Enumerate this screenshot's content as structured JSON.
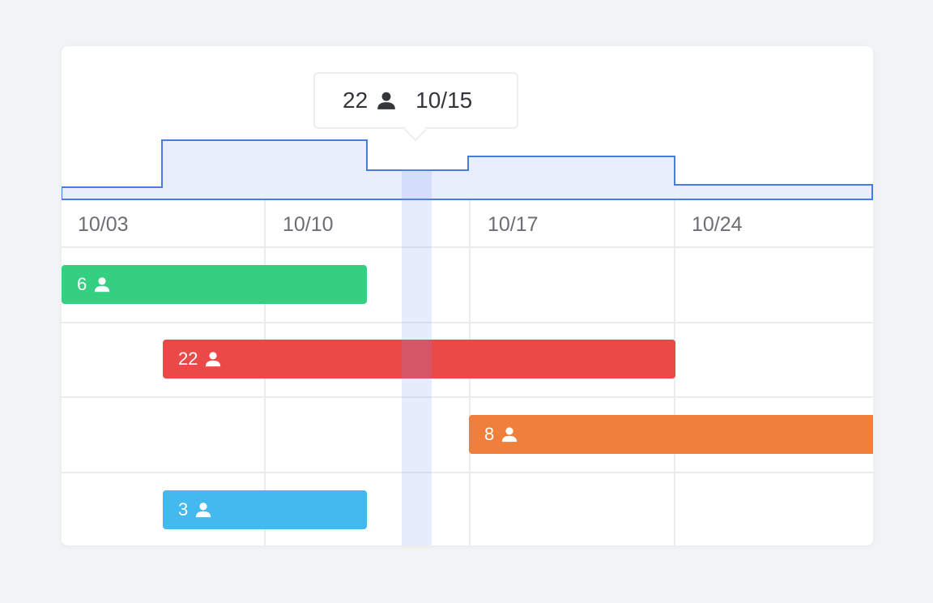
{
  "timeline": {
    "dates": [
      "10/03",
      "10/10",
      "10/17",
      "10/24"
    ],
    "tooltip": {
      "count": "22",
      "date": "10/15"
    },
    "bars": [
      {
        "count": "6",
        "color": "#34cf80"
      },
      {
        "count": "22",
        "color": "#ea4947"
      },
      {
        "count": "8",
        "color": "#f07f3c"
      },
      {
        "count": "3",
        "color": "#43b9ed"
      }
    ],
    "step_fill": "#e8eefc",
    "step_line": "#4a7be0",
    "highlight": "#d9e2fc"
  }
}
